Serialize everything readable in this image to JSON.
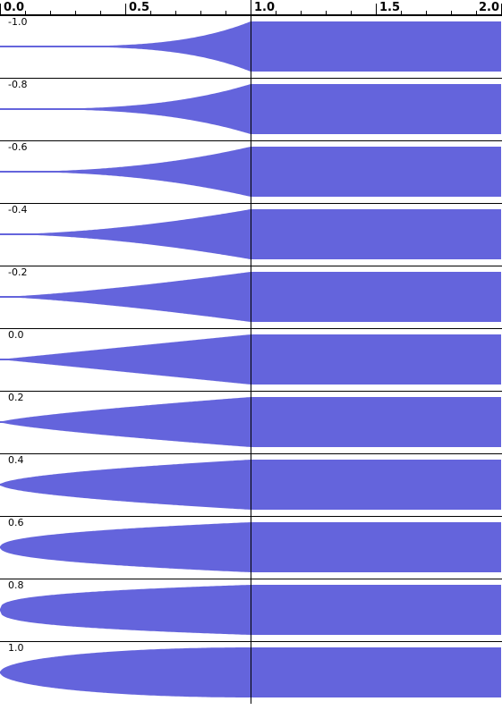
{
  "waveform_color": "#6464dc",
  "ruler": {
    "labels": [
      "0.0",
      "0.5",
      "1.0",
      "1.5",
      "2.0"
    ],
    "values": [
      0.0,
      0.5,
      1.0,
      1.5,
      2.0
    ]
  },
  "tracks": [
    {
      "label": "-1.0",
      "curve": -1.0
    },
    {
      "label": "-0.8",
      "curve": -0.8
    },
    {
      "label": "-0.6",
      "curve": -0.6
    },
    {
      "label": "-0.4",
      "curve": -0.4
    },
    {
      "label": "-0.2",
      "curve": -0.2
    },
    {
      "label": "0.0",
      "curve": 0.0
    },
    {
      "label": "0.2",
      "curve": 0.2
    },
    {
      "label": "0.4",
      "curve": 0.4
    },
    {
      "label": "0.6",
      "curve": 0.6
    },
    {
      "label": "0.8",
      "curve": 0.8
    },
    {
      "label": "1.0",
      "curve": 1.0
    }
  ],
  "cursor_time": 1.0
}
